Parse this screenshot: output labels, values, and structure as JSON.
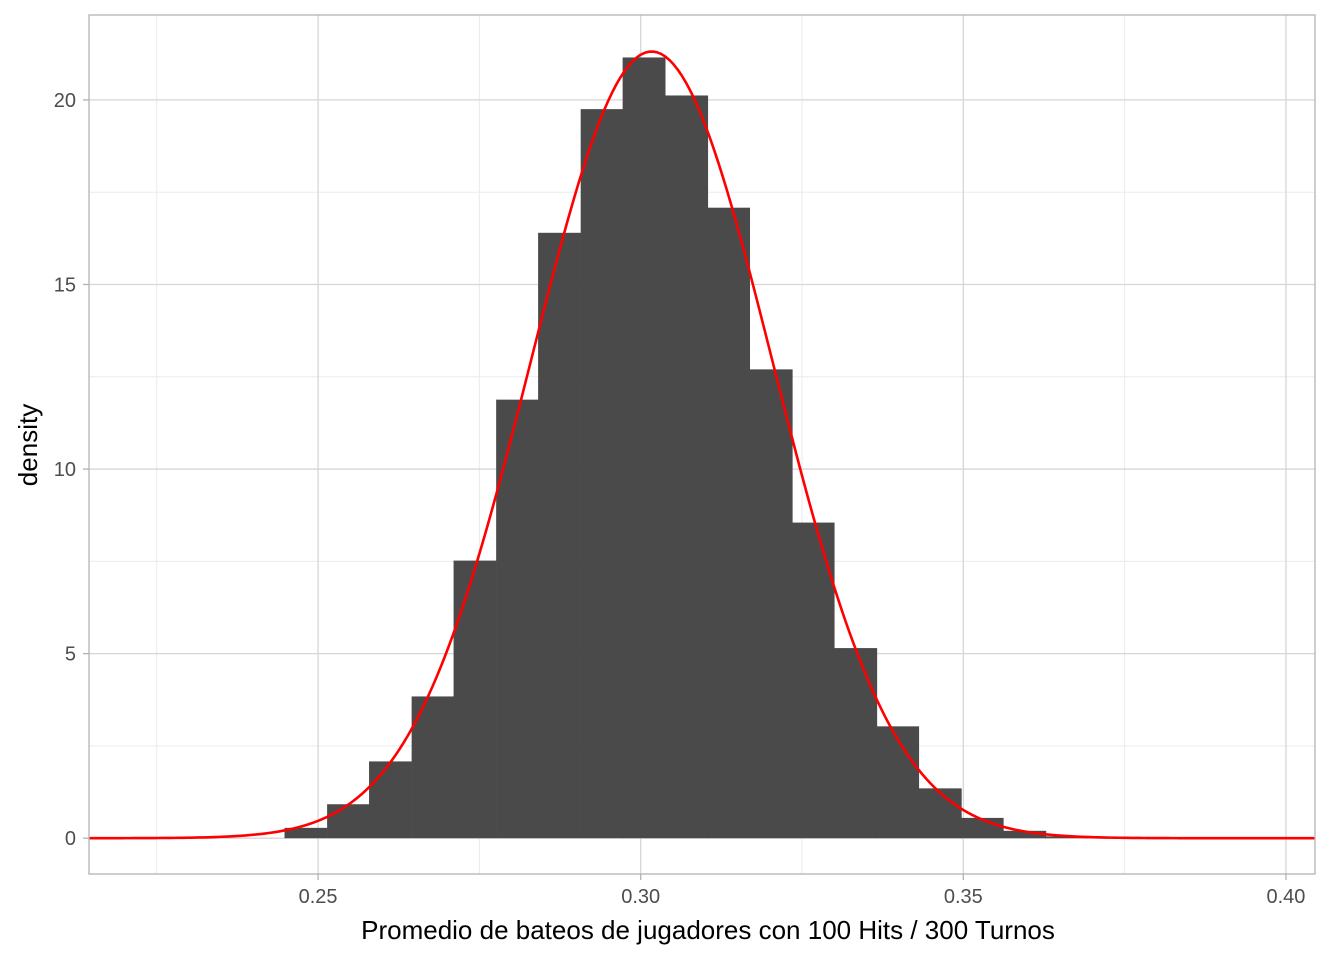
{
  "chart_data": {
    "type": "bar",
    "subtype": "histogram-with-density-curve",
    "title": "",
    "xlabel": "Promedio de bateos de jugadores con  100 Hits / 300 Turnos",
    "ylabel": "density",
    "xlim": [
      0.2145,
      0.4045
    ],
    "ylim": [
      -0.97,
      22.3
    ],
    "x_ticks": [
      0.25,
      0.3,
      0.35,
      0.4
    ],
    "x_tick_labels": [
      "0.25",
      "0.30",
      "0.35",
      "0.40"
    ],
    "y_ticks": [
      0,
      5,
      10,
      15,
      20
    ],
    "y_tick_labels": [
      "0",
      "5",
      "10",
      "15",
      "20"
    ],
    "grid": true,
    "theme": "light",
    "bin_width": 0.00655,
    "bins": [
      {
        "x_start": 0.2448,
        "density": 0.28
      },
      {
        "x_start": 0.2514,
        "density": 0.92
      },
      {
        "x_start": 0.2579,
        "density": 2.08
      },
      {
        "x_start": 0.2645,
        "density": 3.84
      },
      {
        "x_start": 0.271,
        "density": 7.52
      },
      {
        "x_start": 0.2776,
        "density": 11.88
      },
      {
        "x_start": 0.2841,
        "density": 16.4
      },
      {
        "x_start": 0.2907,
        "density": 19.75
      },
      {
        "x_start": 0.2972,
        "density": 21.15
      },
      {
        "x_start": 0.3038,
        "density": 20.12
      },
      {
        "x_start": 0.3103,
        "density": 17.08
      },
      {
        "x_start": 0.3169,
        "density": 12.7
      },
      {
        "x_start": 0.3234,
        "density": 8.55
      },
      {
        "x_start": 0.33,
        "density": 5.15
      },
      {
        "x_start": 0.3365,
        "density": 3.03
      },
      {
        "x_start": 0.3431,
        "density": 1.35
      },
      {
        "x_start": 0.3496,
        "density": 0.55
      },
      {
        "x_start": 0.3562,
        "density": 0.2
      },
      {
        "x_start": 0.3627,
        "density": 0.05
      }
    ],
    "density_curve": {
      "type": "normal",
      "mean": 0.3017,
      "sd": 0.01872,
      "x_range": [
        0.2145,
        0.4045
      ],
      "color": "#ff0000"
    },
    "bar_color": "#4a4a4a",
    "panel_border_color": "#b3b3b3",
    "grid_major_color": "#d6d6d6",
    "grid_minor_color": "#ebebeb"
  }
}
